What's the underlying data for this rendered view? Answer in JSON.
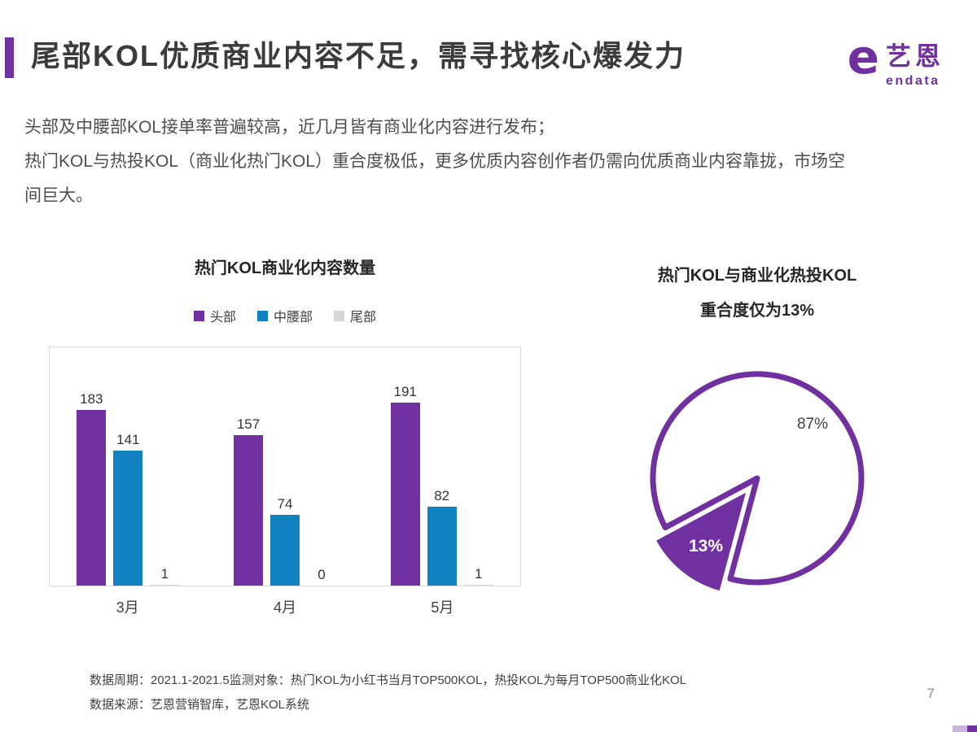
{
  "slide": {
    "title": "尾部KOL优质商业内容不足，需寻找核心爆发力",
    "body_lines": [
      "头部及中腰部KOL接单率普遍较高，近几月皆有商业化内容进行发布；",
      "热门KOL与热投KOL（商业化热门KOL）重合度极低，更多优质内容创作者仍需向优质商业内容靠拢，市场空间巨大。"
    ],
    "footer_lines": [
      "数据周期：2021.1-2021.5监测对象：热门KOL为小红书当月TOP500KOL，热投KOL为每月TOP500商业化KOL",
      "数据来源：艺恩营销智库，艺恩KOL系统"
    ],
    "page_number": "7",
    "accent_color": "#7030A0"
  },
  "logo": {
    "brand_cn": "艺恩",
    "brand_en": "endata",
    "icon": "endata-e-icon",
    "color": "#7030A0"
  },
  "chart_data": [
    {
      "type": "bar",
      "title": "热门KOL商业化内容数量",
      "categories": [
        "3月",
        "4月",
        "5月"
      ],
      "series": [
        {
          "name": "头部",
          "color": "#7030A0",
          "values": [
            183,
            157,
            191
          ]
        },
        {
          "name": "中腰部",
          "color": "#1181C2",
          "values": [
            141,
            74,
            82
          ]
        },
        {
          "name": "尾部",
          "color": "#D6D6D6",
          "values": [
            1,
            0,
            1
          ]
        }
      ],
      "legend_position": "top",
      "grid": false,
      "ylim": [
        0,
        250
      ],
      "xlabel": "",
      "ylabel": ""
    },
    {
      "type": "pie",
      "title_lines": [
        "热门KOL与商业化热投KOL",
        "重合度仅为13%"
      ],
      "color": "#7030A0",
      "slices": [
        {
          "label": "87%",
          "value": 87,
          "style": "outline-white"
        },
        {
          "label": "13%",
          "value": 13,
          "style": "filled",
          "exploded": true
        }
      ]
    }
  ]
}
